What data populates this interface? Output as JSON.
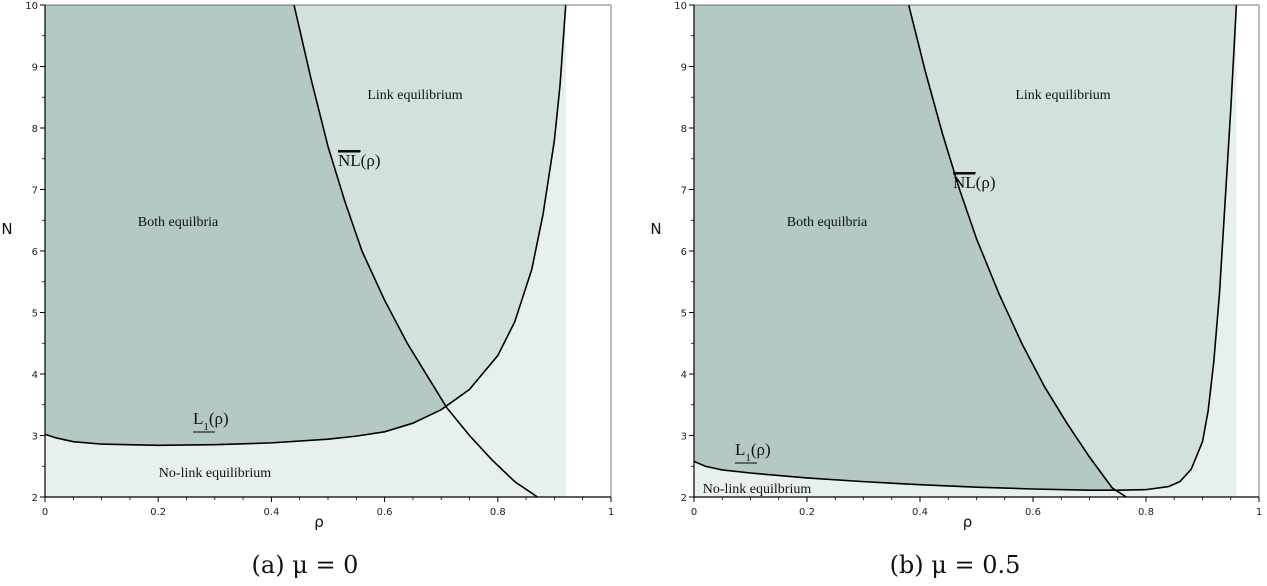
{
  "colors": {
    "both_equilibria": "#b4c8c6",
    "link_equilibrium": "#d2e1de",
    "no_link_equilibrium": "#e8f0ee",
    "curve": "#000000"
  },
  "chart_data": [
    {
      "type": "area",
      "caption": "(a) μ = 0",
      "xlabel": "ρ",
      "ylabel": "N",
      "xlim": [
        0,
        1
      ],
      "ylim": [
        2,
        10
      ],
      "x_ticks": [
        "0",
        "0.2",
        "0.4",
        "0.6",
        "0.8",
        "1"
      ],
      "y_ticks": [
        "2",
        "3",
        "4",
        "5",
        "6",
        "7",
        "8",
        "9",
        "10"
      ],
      "region_labels": {
        "both": "Both equilbria",
        "link": "Link equilibrium",
        "nolink": "No-link equilibrium"
      },
      "curve_labels": {
        "nl": "NL(ρ)",
        "l1": "L1(ρ)"
      },
      "curves": {
        "L1": {
          "x": [
            0,
            0.02,
            0.05,
            0.1,
            0.2,
            0.3,
            0.4,
            0.5,
            0.55,
            0.6,
            0.65,
            0.7,
            0.75,
            0.8,
            0.83,
            0.86,
            0.88,
            0.9,
            0.91,
            0.92
          ],
          "y": [
            3.02,
            2.96,
            2.9,
            2.86,
            2.84,
            2.85,
            2.88,
            2.94,
            2.99,
            3.06,
            3.2,
            3.42,
            3.75,
            4.3,
            4.85,
            5.7,
            6.6,
            7.8,
            8.7,
            10
          ]
        },
        "NL": {
          "x": [
            0.44,
            0.47,
            0.5,
            0.53,
            0.56,
            0.6,
            0.64,
            0.68,
            0.71,
            0.75,
            0.79,
            0.83,
            0.87
          ],
          "y": [
            10,
            8.8,
            7.7,
            6.8,
            6.0,
            5.2,
            4.5,
            3.9,
            3.45,
            3.0,
            2.6,
            2.25,
            2.0
          ]
        }
      }
    },
    {
      "type": "area",
      "caption": "(b) μ = 0.5",
      "xlabel": "ρ",
      "ylabel": "N",
      "xlim": [
        0,
        1
      ],
      "ylim": [
        2,
        10
      ],
      "x_ticks": [
        "0",
        "0.2",
        "0.4",
        "0.6",
        "0.8",
        "1"
      ],
      "y_ticks": [
        "2",
        "3",
        "4",
        "5",
        "6",
        "7",
        "8",
        "9",
        "10"
      ],
      "region_labels": {
        "both": "Both equilbria",
        "link": "Link equilibrium",
        "nolink": "No-link equilbrium"
      },
      "curve_labels": {
        "nl": "NL(ρ)",
        "l1": "L1(ρ)"
      },
      "curves": {
        "L1": {
          "x": [
            0,
            0.02,
            0.05,
            0.1,
            0.2,
            0.3,
            0.4,
            0.5,
            0.6,
            0.7,
            0.75,
            0.8,
            0.84,
            0.86,
            0.88,
            0.9,
            0.91,
            0.92,
            0.93,
            0.94,
            0.95,
            0.96
          ],
          "y": [
            2.58,
            2.5,
            2.44,
            2.39,
            2.31,
            2.25,
            2.2,
            2.16,
            2.13,
            2.11,
            2.11,
            2.12,
            2.17,
            2.25,
            2.45,
            2.9,
            3.4,
            4.2,
            5.3,
            6.8,
            8.3,
            10
          ]
        },
        "NL": {
          "x": [
            0.38,
            0.41,
            0.44,
            0.47,
            0.5,
            0.54,
            0.58,
            0.62,
            0.66,
            0.7,
            0.74,
            0.765
          ],
          "y": [
            10,
            8.9,
            7.9,
            7.0,
            6.2,
            5.3,
            4.5,
            3.8,
            3.2,
            2.65,
            2.15,
            2.0
          ]
        }
      }
    }
  ]
}
